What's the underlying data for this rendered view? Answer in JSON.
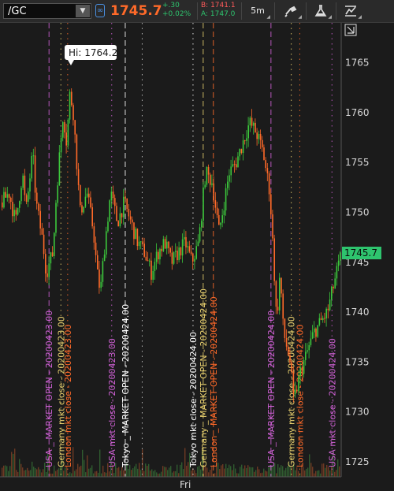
{
  "header": {
    "symbol": "/GC",
    "last_price": "1745.7",
    "net_change": "+.30",
    "pct_change": "+0.02%",
    "bid": "B: 1741.1",
    "ask": "A: 1747.0",
    "timeframe": "5m",
    "dropdown_icon": "chevron-down-icon",
    "link_icon": "link-icon",
    "drawing_icon": "drawing-tools-icon",
    "studies_icon": "flask-icon",
    "style_icon": "chart-style-icon",
    "colors": {
      "last_price": "#ff6a29",
      "up": "#2ec46e",
      "down": "#ff5a5a"
    }
  },
  "chart_data": {
    "type": "candlestick",
    "y_ticks": [
      "1765",
      "1760",
      "1755",
      "1750",
      "1745",
      "1740",
      "1735",
      "1730",
      "1725"
    ],
    "ylim": [
      1723.5,
      1769
    ],
    "x_label": "Fri",
    "high_bubble": "Hi: 1764.2",
    "last_label": "1745.7",
    "price_path": [
      [
        0,
        1751
      ],
      [
        2,
        1752
      ],
      [
        4,
        1749
      ],
      [
        6,
        1754
      ],
      [
        7,
        1750
      ],
      [
        9,
        1756
      ],
      [
        10,
        1751
      ],
      [
        12,
        1747
      ],
      [
        13,
        1744
      ],
      [
        15,
        1746
      ],
      [
        16,
        1752
      ],
      [
        18,
        1760
      ],
      [
        19,
        1757
      ],
      [
        20,
        1762
      ],
      [
        21,
        1760
      ],
      [
        22,
        1755
      ],
      [
        23,
        1750
      ],
      [
        25,
        1752
      ],
      [
        27,
        1748
      ],
      [
        28,
        1744
      ],
      [
        29,
        1742
      ],
      [
        30,
        1746
      ],
      [
        32,
        1752
      ],
      [
        34,
        1749
      ],
      [
        36,
        1751
      ],
      [
        38,
        1749
      ],
      [
        40,
        1747
      ],
      [
        42,
        1746
      ],
      [
        44,
        1744
      ],
      [
        46,
        1746
      ],
      [
        48,
        1747
      ],
      [
        50,
        1745
      ],
      [
        52,
        1746
      ],
      [
        54,
        1747
      ],
      [
        56,
        1745
      ],
      [
        58,
        1747
      ],
      [
        60,
        1754
      ],
      [
        62,
        1753
      ],
      [
        64,
        1748
      ],
      [
        65,
        1750
      ],
      [
        67,
        1754
      ],
      [
        69,
        1755
      ],
      [
        71,
        1757
      ],
      [
        73,
        1759
      ],
      [
        75,
        1758
      ],
      [
        77,
        1756
      ],
      [
        79,
        1752
      ],
      [
        80,
        1746
      ],
      [
        81,
        1739
      ],
      [
        82,
        1744
      ],
      [
        83,
        1738
      ],
      [
        85,
        1735
      ],
      [
        86,
        1731
      ],
      [
        88,
        1734
      ],
      [
        90,
        1736
      ],
      [
        92,
        1738
      ],
      [
        94,
        1739
      ],
      [
        96,
        1740
      ],
      [
        98,
        1743
      ],
      [
        100,
        1745.7
      ]
    ],
    "events": [
      {
        "x": 14,
        "label": "USA _ MARKET OPEN - 20200423.00",
        "color": "#d061d6",
        "style": "dash"
      },
      {
        "x": 17.5,
        "label": "Germany mkt close - 20200423.00",
        "color": "#e8d06e",
        "style": "dot"
      },
      {
        "x": 19.5,
        "label": "London mkt close - 20200423.00",
        "color": "#ff6a29",
        "style": "dot"
      },
      {
        "x": 32.5,
        "label": "USA mkt close - 20200423.00",
        "color": "#d061d6",
        "style": "dot"
      },
      {
        "x": 36.5,
        "label": "Tokyo _ MARKET OPEN - 20200424.00",
        "color": "#ffffff",
        "style": "dash"
      },
      {
        "x": 41.5,
        "label": "",
        "color": "#cccccc",
        "style": "dot"
      },
      {
        "x": 56.5,
        "label": "Tokyo mkt close - 20200424.00",
        "color": "#ffffff",
        "style": "dot"
      },
      {
        "x": 59.5,
        "label": "Germany _ MARKET OPEN - 20200424.00",
        "color": "#e8d06e",
        "style": "dash"
      },
      {
        "x": 62.5,
        "label": "London _ MARKET OPEN - 20200424.00",
        "color": "#ff6a29",
        "style": "dash"
      },
      {
        "x": 79.5,
        "label": "USA _ MARKET OPEN - 20200424.00",
        "color": "#d061d6",
        "style": "dash"
      },
      {
        "x": 85.5,
        "label": "Germany mkt close - 20200424.00",
        "color": "#e8d06e",
        "style": "dot"
      },
      {
        "x": 88,
        "label": "London mkt close - 20200424.00",
        "color": "#ff6a29",
        "style": "dot"
      },
      {
        "x": 97.5,
        "label": "USA mkt close - 20200424.00",
        "color": "#d061d6",
        "style": "dot"
      }
    ]
  }
}
